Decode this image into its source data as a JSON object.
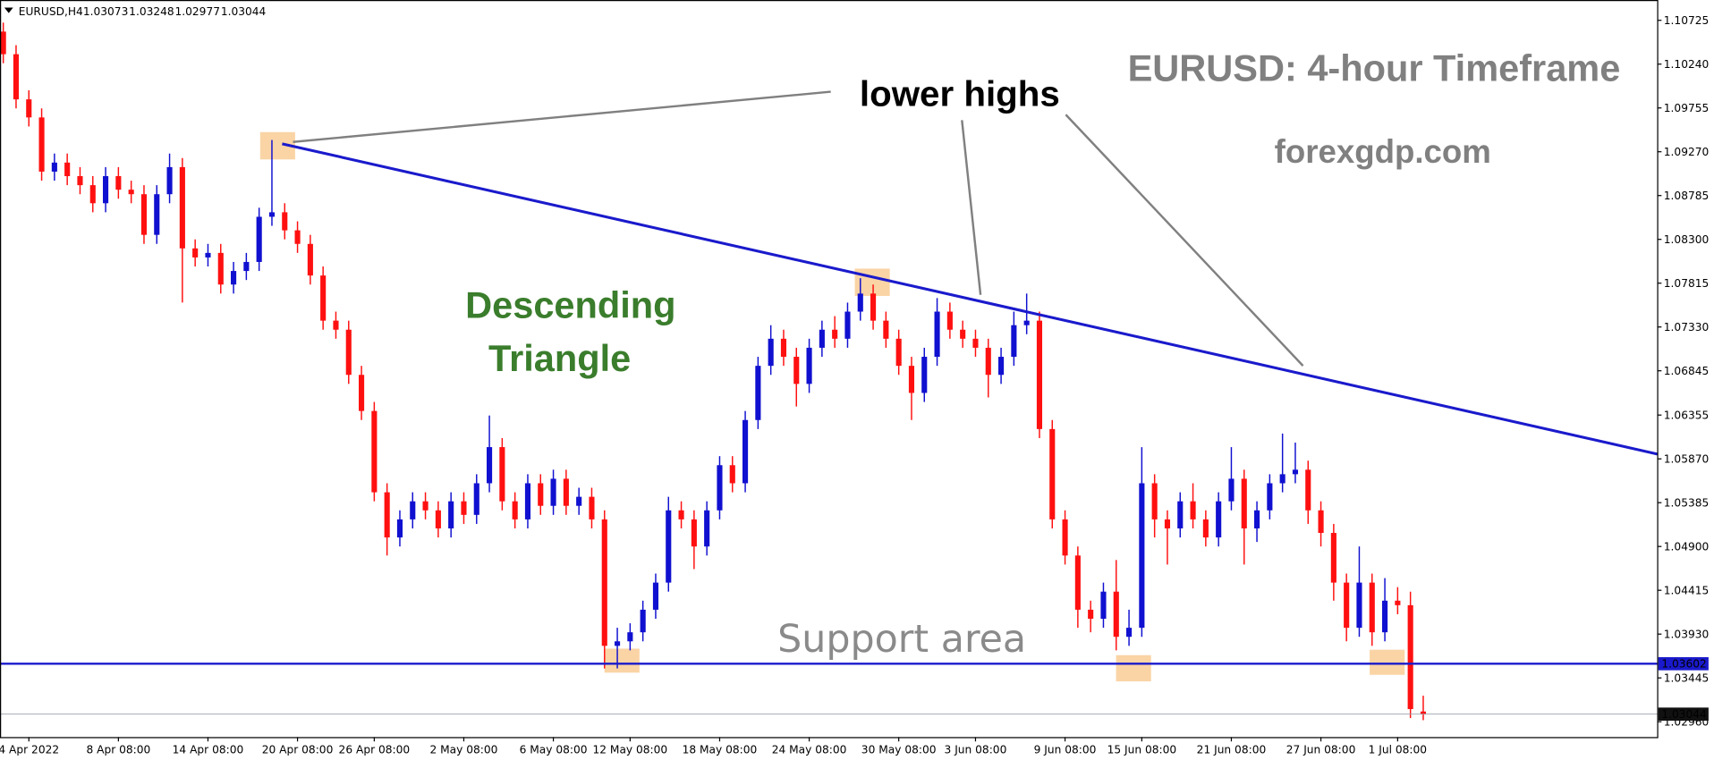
{
  "chart_data": {
    "type": "candlestick",
    "symbol": "EURUSD,H4",
    "title": "EURUSD: 4-hour Timeframe",
    "subtitle": "forexgdp.com",
    "annotations": [
      "lower highs",
      "Descending",
      "Triangle",
      "Support area"
    ],
    "categories": [
      null,
      null,
      "4 Apr 2022",
      null,
      null,
      null,
      null,
      null,
      null,
      "8 Apr 08:00",
      null,
      null,
      null,
      null,
      null,
      null,
      "14 Apr 08:00",
      null,
      null,
      null,
      null,
      null,
      null,
      "20 Apr 08:00",
      null,
      null,
      null,
      null,
      null,
      "26 Apr 08:00",
      null,
      null,
      null,
      null,
      null,
      null,
      "2 May 08:00",
      null,
      null,
      null,
      null,
      null,
      null,
      "6 May 08:00",
      null,
      null,
      null,
      null,
      null,
      "12 May 08:00",
      null,
      null,
      null,
      null,
      null,
      null,
      "18 May 08:00",
      null,
      null,
      null,
      null,
      null,
      null,
      "24 May 08:00",
      null,
      null,
      null,
      null,
      null,
      null,
      "30 May 08:00",
      null,
      null,
      null,
      null,
      null,
      "3 Jun 08:00",
      null,
      null,
      null,
      null,
      null,
      null,
      "9 Jun 08:00",
      null,
      null,
      null,
      null,
      null,
      "15 Jun 08:00",
      null,
      null,
      null,
      null,
      null,
      null,
      "21 Jun 08:00",
      null,
      null,
      null,
      null,
      null,
      null,
      "27 Jun 08:00",
      null,
      null,
      null,
      null,
      null,
      "1 Jul 08:00",
      null,
      null
    ],
    "series": [
      {
        "up_color": "#1010d0",
        "down_color": "#ff1010",
        "open": [
          1.106,
          1.1035,
          1.0985,
          1.0965,
          1.0905,
          1.0915,
          1.09,
          1.089,
          1.087,
          1.09,
          1.0885,
          1.088,
          1.0835,
          1.088,
          1.091,
          1.082,
          1.081,
          1.0815,
          1.078,
          1.0795,
          1.0805,
          1.0855,
          1.086,
          1.084,
          1.0825,
          1.079,
          1.074,
          1.073,
          1.068,
          1.064,
          1.055,
          1.05,
          1.052,
          1.054,
          1.053,
          1.051,
          1.054,
          1.0525,
          1.056,
          1.06,
          1.054,
          1.052,
          1.056,
          1.0535,
          1.0565,
          1.0535,
          1.0545,
          1.052,
          1.038,
          1.0385,
          1.0395,
          1.042,
          1.045,
          1.053,
          1.052,
          1.049,
          1.053,
          1.058,
          1.056,
          1.063,
          1.069,
          1.072,
          1.07,
          1.067,
          1.071,
          1.073,
          1.072,
          1.075,
          1.077,
          1.074,
          1.072,
          1.069,
          1.066,
          1.07,
          1.075,
          1.073,
          1.072,
          1.071,
          1.068,
          1.07,
          1.0735,
          1.074,
          1.062,
          1.052,
          1.048,
          1.042,
          1.041,
          1.044,
          1.039,
          1.04,
          1.056,
          1.052,
          1.051,
          1.054,
          1.052,
          1.05,
          1.054,
          1.0565,
          1.051,
          1.053,
          1.056,
          1.057,
          1.0575,
          1.053,
          1.0505,
          1.045,
          1.04,
          1.045,
          1.0395,
          1.043,
          1.0425,
          1.03073
        ],
        "high": [
          1.107,
          1.1045,
          1.0995,
          1.0975,
          1.0925,
          1.0925,
          1.091,
          1.09,
          1.091,
          1.091,
          1.0895,
          1.089,
          1.089,
          1.0925,
          1.092,
          1.083,
          1.0825,
          1.0825,
          1.0805,
          1.0815,
          1.0865,
          1.094,
          1.087,
          1.085,
          1.0835,
          1.08,
          1.075,
          1.074,
          1.069,
          1.065,
          1.056,
          1.053,
          1.055,
          1.055,
          1.054,
          1.055,
          1.055,
          1.057,
          1.0635,
          1.061,
          1.055,
          1.057,
          1.057,
          1.0575,
          1.0575,
          1.0555,
          1.0555,
          1.053,
          1.04,
          1.0405,
          1.043,
          1.046,
          1.0545,
          1.054,
          1.053,
          1.054,
          1.059,
          1.059,
          1.064,
          1.07,
          1.0735,
          1.073,
          1.071,
          1.072,
          1.074,
          1.0745,
          1.076,
          1.0787,
          1.078,
          1.075,
          1.073,
          1.07,
          1.071,
          1.0765,
          1.076,
          1.074,
          1.073,
          1.072,
          1.071,
          1.075,
          1.077,
          1.075,
          1.063,
          1.053,
          1.049,
          1.043,
          1.045,
          1.0475,
          1.042,
          1.06,
          1.057,
          1.053,
          1.055,
          1.056,
          1.053,
          1.055,
          1.06,
          1.0575,
          1.054,
          1.057,
          1.0615,
          1.0605,
          1.0585,
          1.054,
          1.0515,
          1.046,
          1.049,
          1.046,
          1.0455,
          1.0445,
          1.044,
          1.03248
        ],
        "low": [
          1.1025,
          1.0975,
          1.0955,
          1.0895,
          1.0895,
          1.089,
          1.088,
          1.086,
          1.086,
          1.0875,
          1.087,
          1.0825,
          1.0825,
          1.087,
          1.076,
          1.08,
          1.08,
          1.077,
          1.077,
          1.0785,
          1.0795,
          1.0845,
          1.083,
          1.0815,
          1.078,
          1.073,
          1.072,
          1.067,
          1.063,
          1.054,
          1.048,
          1.049,
          1.051,
          1.052,
          1.05,
          1.05,
          1.0515,
          1.0515,
          1.055,
          1.053,
          1.051,
          1.051,
          1.0525,
          1.0525,
          1.0525,
          1.0525,
          1.051,
          1.0355,
          1.0355,
          1.0375,
          1.0385,
          1.041,
          1.044,
          1.051,
          1.0465,
          1.048,
          1.052,
          1.055,
          1.055,
          1.062,
          1.068,
          1.069,
          1.0645,
          1.066,
          1.07,
          1.071,
          1.071,
          1.074,
          1.073,
          1.071,
          1.068,
          1.063,
          1.065,
          1.069,
          1.072,
          1.071,
          1.07,
          1.0655,
          1.067,
          1.069,
          1.0725,
          1.061,
          1.051,
          1.047,
          1.04,
          1.0395,
          1.04,
          1.0375,
          1.038,
          1.039,
          1.05,
          1.047,
          1.05,
          1.051,
          1.049,
          1.049,
          1.053,
          1.047,
          1.0495,
          1.052,
          1.055,
          1.056,
          1.0515,
          1.049,
          1.043,
          1.0385,
          1.039,
          1.038,
          1.0385,
          1.0415,
          1.03,
          1.02977
        ],
        "close": [
          1.1035,
          1.0985,
          1.0965,
          1.0905,
          1.0915,
          1.09,
          1.089,
          1.087,
          1.09,
          1.0885,
          1.088,
          1.0835,
          1.088,
          1.091,
          1.082,
          1.081,
          1.0815,
          1.078,
          1.0795,
          1.0805,
          1.0855,
          1.086,
          1.084,
          1.0825,
          1.079,
          1.074,
          1.073,
          1.068,
          1.064,
          1.055,
          1.05,
          1.052,
          1.054,
          1.053,
          1.051,
          1.054,
          1.0525,
          1.056,
          1.06,
          1.054,
          1.052,
          1.056,
          1.0535,
          1.0565,
          1.0535,
          1.0545,
          1.052,
          1.038,
          1.0385,
          1.0395,
          1.042,
          1.045,
          1.053,
          1.052,
          1.049,
          1.053,
          1.058,
          1.056,
          1.063,
          1.069,
          1.072,
          1.07,
          1.067,
          1.071,
          1.073,
          1.072,
          1.075,
          1.077,
          1.074,
          1.072,
          1.069,
          1.066,
          1.07,
          1.075,
          1.073,
          1.072,
          1.071,
          1.068,
          1.07,
          1.0735,
          1.074,
          1.062,
          1.052,
          1.048,
          1.042,
          1.041,
          1.044,
          1.039,
          1.04,
          1.056,
          1.052,
          1.051,
          1.054,
          1.052,
          1.05,
          1.054,
          1.0565,
          1.051,
          1.053,
          1.056,
          1.057,
          1.0575,
          1.053,
          1.0505,
          1.045,
          1.04,
          1.045,
          1.0395,
          1.043,
          1.0425,
          1.031,
          1.03044
        ]
      }
    ],
    "trendline": {
      "color": "#1a1acc",
      "x": [
        21.8,
        129.3
      ],
      "y": [
        1.09358,
        1.05923
      ]
    },
    "support_level": 1.03602,
    "support_color": "#1a1acc",
    "ylim": [
      1.0279,
      1.1095
    ],
    "yticks": [
      1.10725,
      {
        "value": 1.1024,
        "label": "1.10240"
      },
      1.09755,
      {
        "value": 1.0927,
        "label": "1.09270"
      },
      1.08785,
      {
        "value": 1.083,
        "label": "1.08300"
      },
      1.07815,
      {
        "value": 1.0733,
        "label": "1.07330"
      },
      1.06845,
      1.06355,
      {
        "value": 1.0587,
        "label": "1.05870"
      },
      1.05385,
      {
        "value": 1.049,
        "label": "1.04900"
      },
      1.04415,
      {
        "value": 1.0393,
        "label": "1.03930"
      },
      1.03445,
      {
        "value": 1.0296,
        "label": "1.02960"
      }
    ]
  }
}
